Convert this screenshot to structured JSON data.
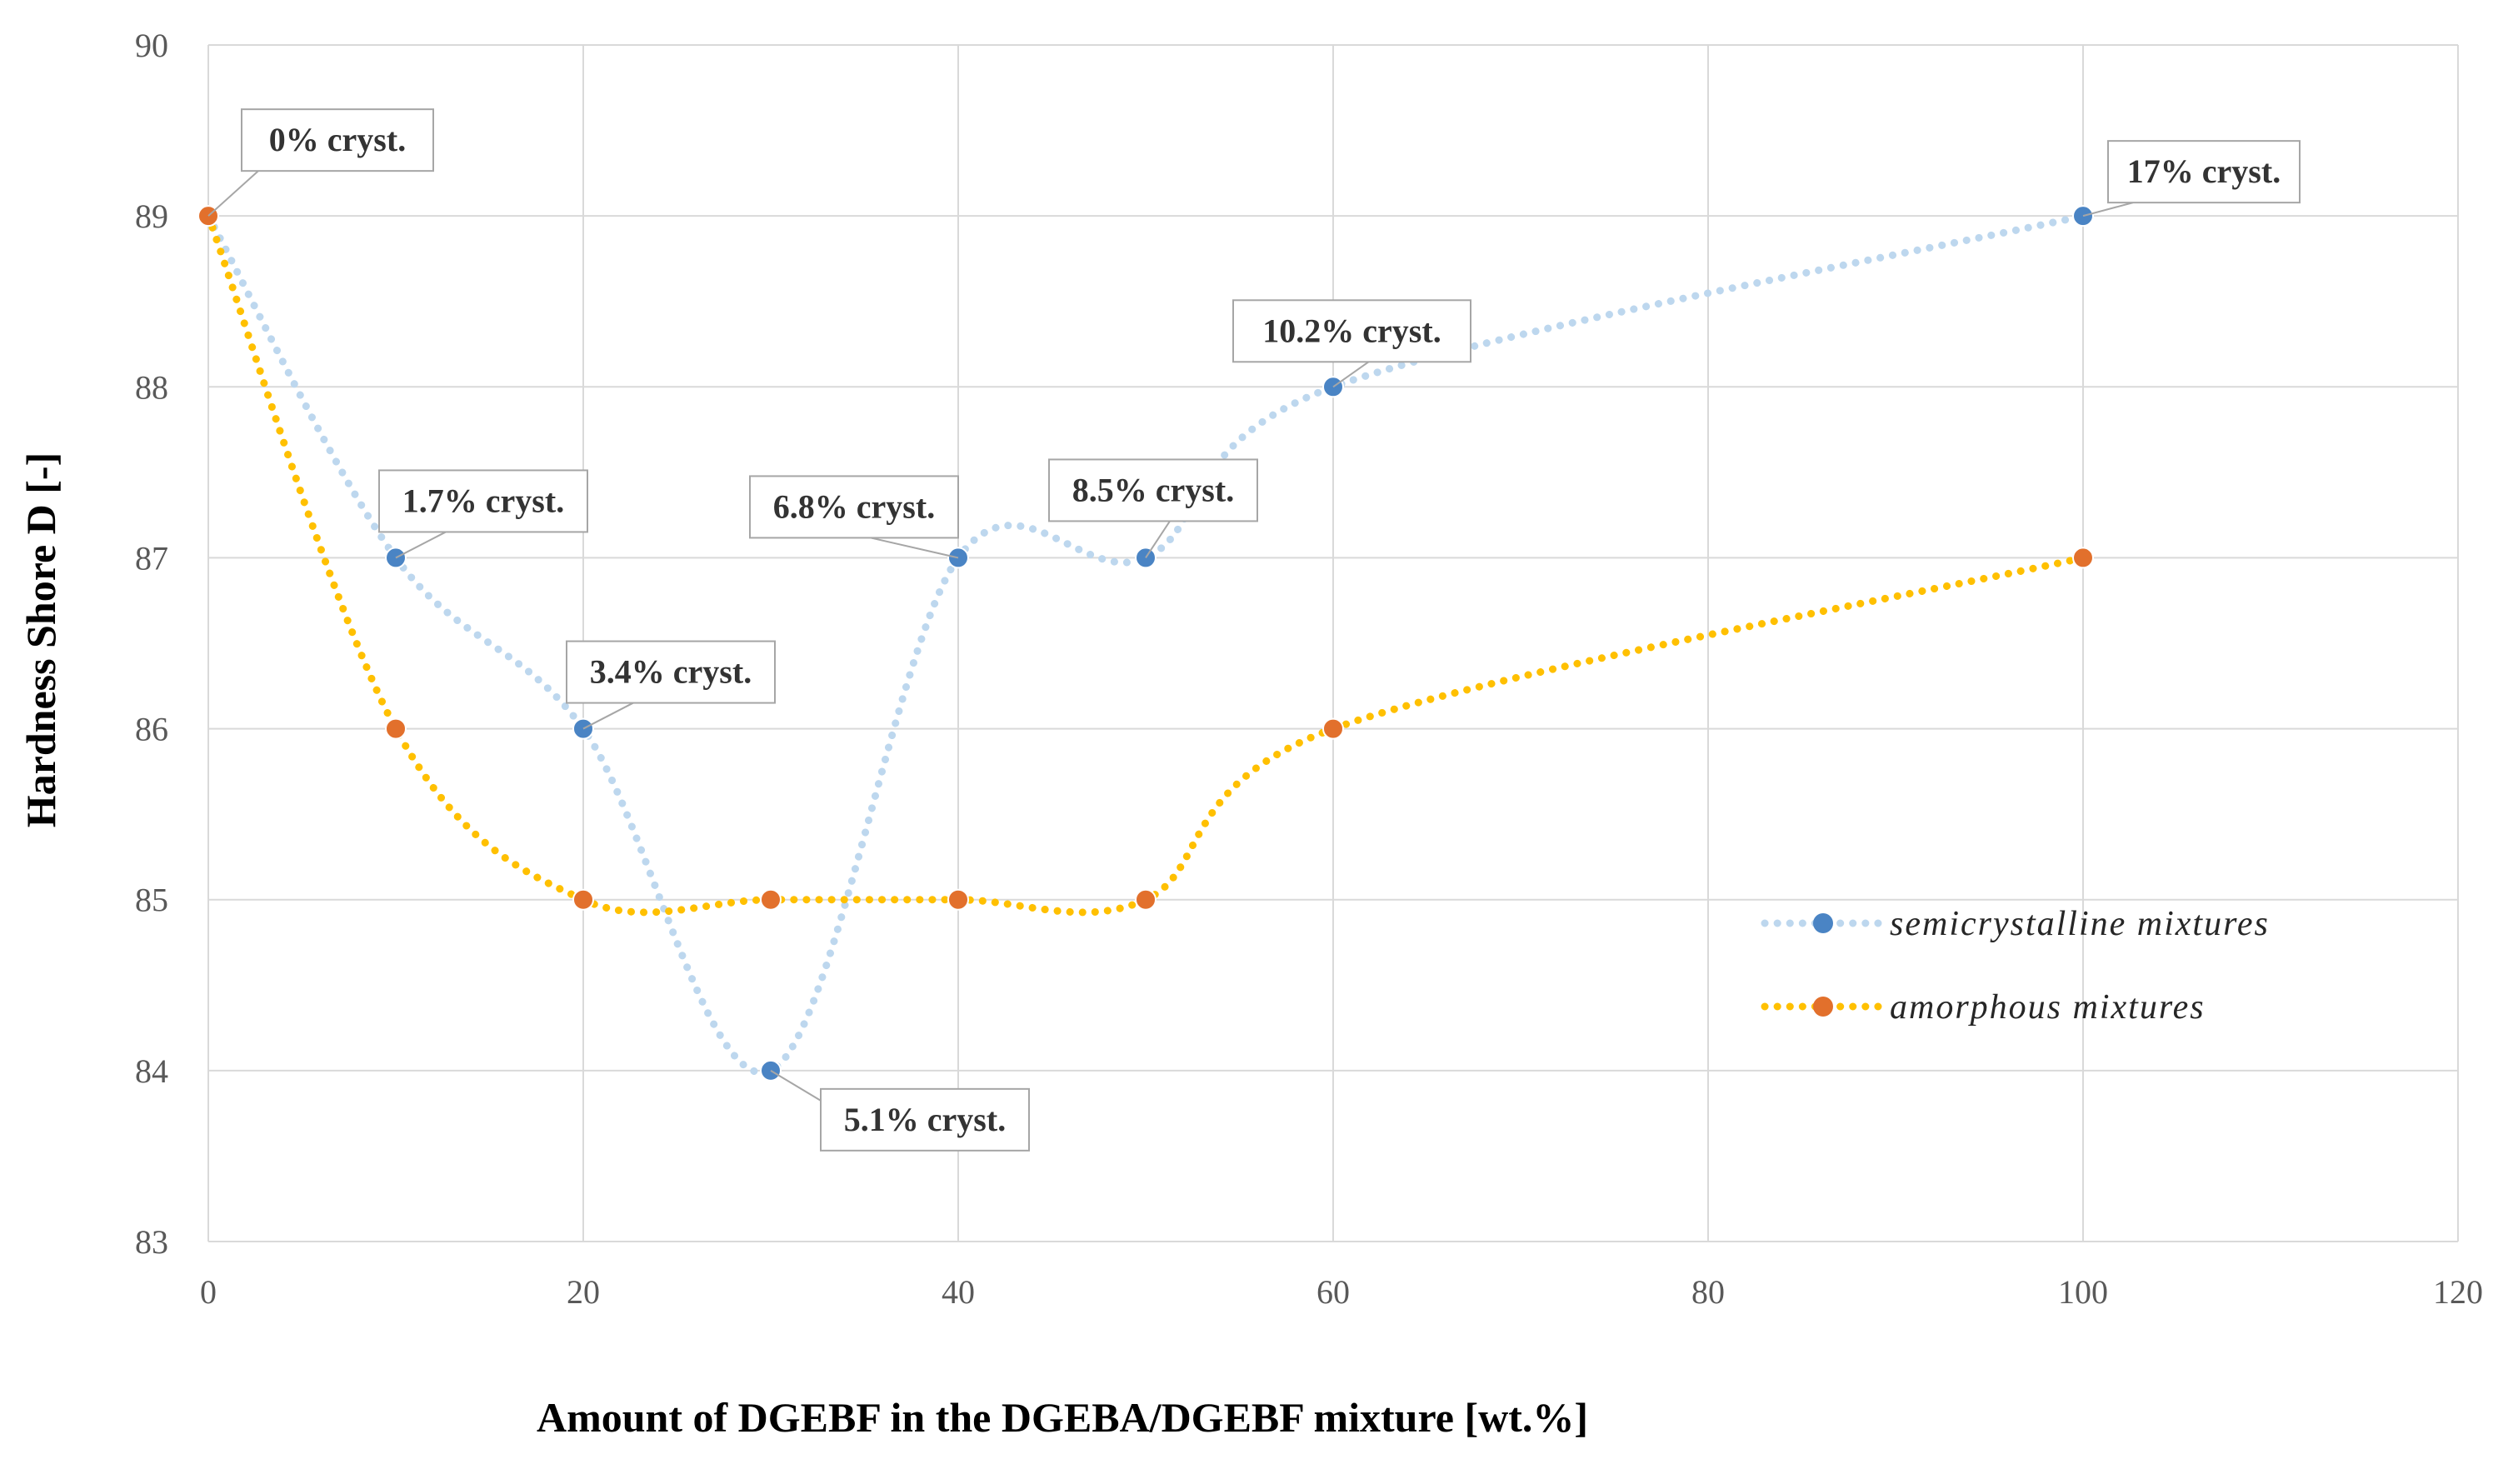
{
  "chart_data": {
    "type": "line",
    "title": "",
    "xlabel": "Amount of DGEBF in the DGEBA/DGEBF mixture [wt.%]",
    "ylabel": "Hardness Shore D [-]",
    "xlim": [
      0,
      120
    ],
    "ylim": [
      83,
      90
    ],
    "xticks": [
      0,
      20,
      40,
      60,
      80,
      100,
      120
    ],
    "yticks": [
      83,
      84,
      85,
      86,
      87,
      88,
      89,
      90
    ],
    "grid": true,
    "smooth": true,
    "legend_position": "right",
    "series": [
      {
        "name": "semicrystalline mixtures",
        "line_color": "#BDD7EE",
        "marker_color": "#4A84C4",
        "x": [
          0,
          10,
          20,
          30,
          40,
          50,
          60,
          100
        ],
        "y": [
          89,
          87,
          86,
          84,
          87,
          87,
          88,
          89
        ]
      },
      {
        "name": "amorphous mixtures",
        "line_color": "#FFC000",
        "marker_color": "#E2702C",
        "x": [
          0,
          10,
          20,
          30,
          40,
          50,
          60,
          100
        ],
        "y": [
          89,
          86,
          85,
          85,
          85,
          85,
          86,
          87
        ]
      }
    ],
    "annotations": [
      {
        "text": "0% cryst.",
        "x": 0,
        "y": 89
      },
      {
        "text": "1.7% cryst.",
        "x": 10,
        "y": 87
      },
      {
        "text": "3.4% cryst.",
        "x": 20,
        "y": 86
      },
      {
        "text": "5.1% cryst.",
        "x": 30,
        "y": 84
      },
      {
        "text": "6.8% cryst.",
        "x": 40,
        "y": 87
      },
      {
        "text": "8.5% cryst.",
        "x": 50,
        "y": 87
      },
      {
        "text": "10.2% cryst.",
        "x": 60,
        "y": 88
      },
      {
        "text": "17% cryst.",
        "x": 100,
        "y": 89
      }
    ]
  }
}
